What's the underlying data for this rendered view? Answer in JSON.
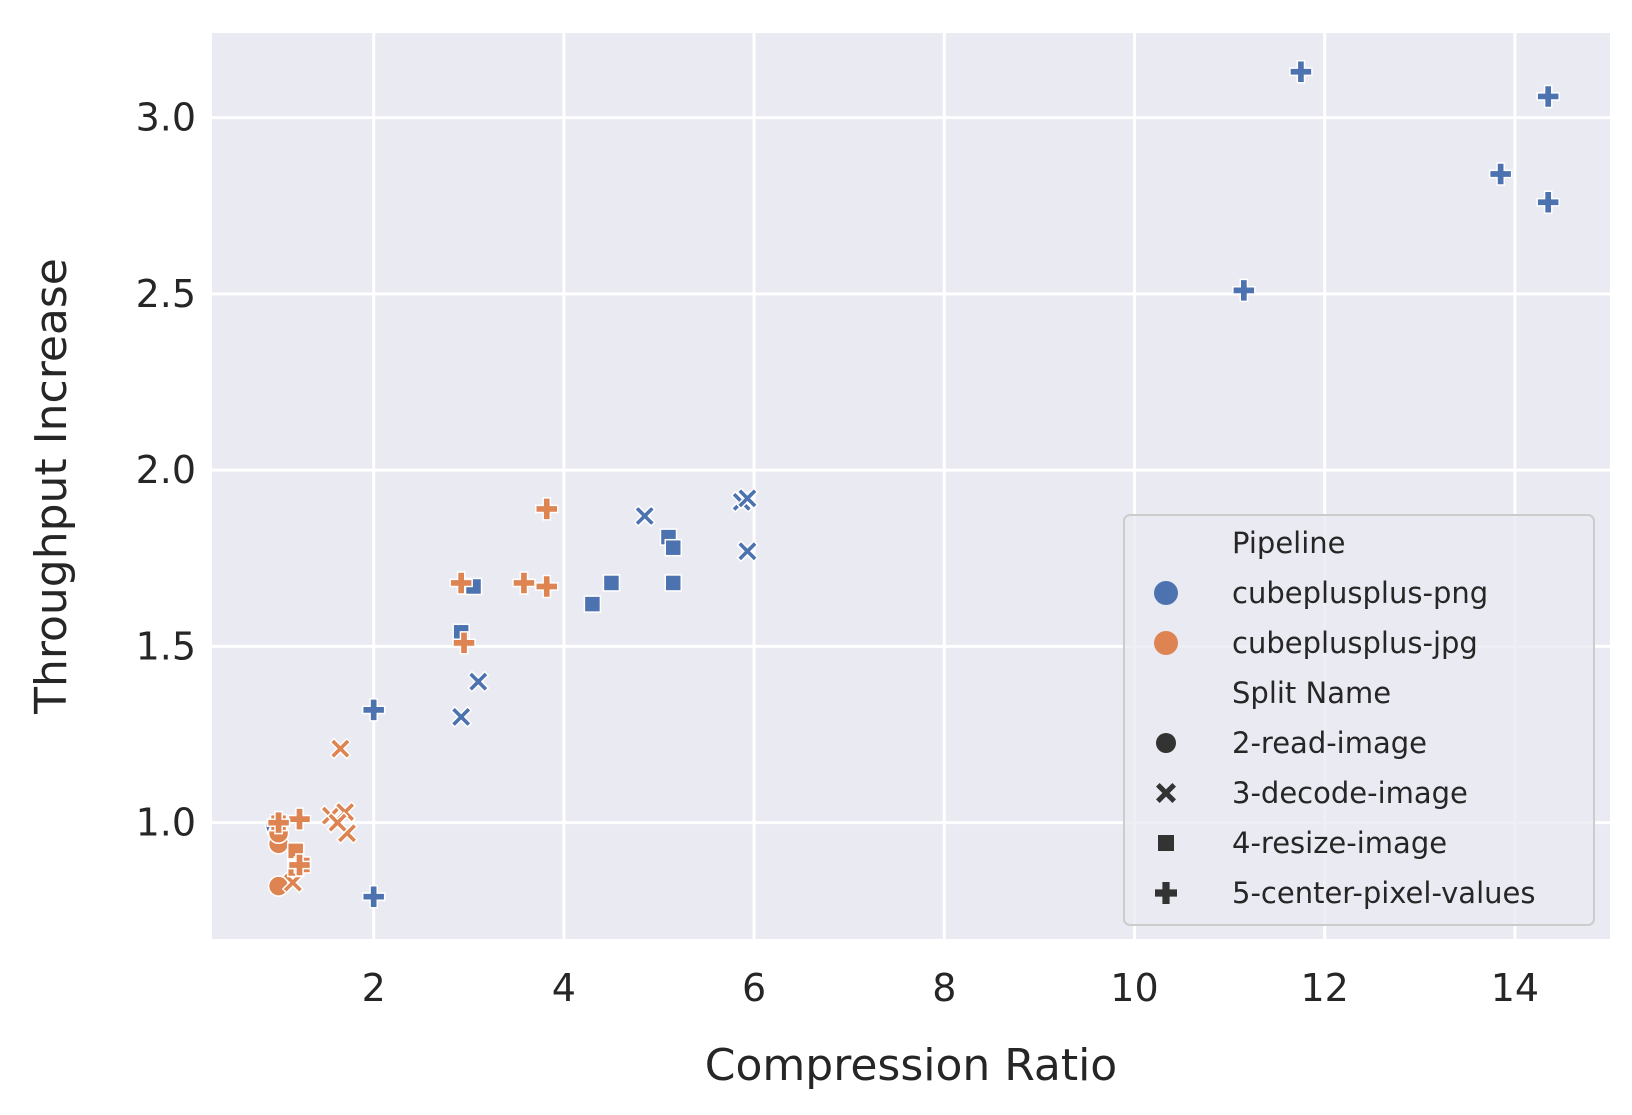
{
  "chart_data": {
    "type": "scatter",
    "title": "",
    "xlabel": "Compression Ratio",
    "ylabel": "Throughput Increase",
    "xlim": [
      0.3,
      15.0
    ],
    "ylim": [
      0.67,
      3.24
    ],
    "xticks": [
      2,
      4,
      6,
      8,
      10,
      12,
      14
    ],
    "yticks": [
      1.0,
      1.5,
      2.0,
      2.5,
      3.0
    ],
    "ytick_labels": [
      "1.0",
      "1.5",
      "2.0",
      "2.5",
      "3.0"
    ],
    "grid": true,
    "background_color": "#eaeaf2",
    "legend": {
      "placement": "lower-right",
      "hue_title": "Pipeline",
      "style_title": "Split Name",
      "hue_entries": [
        {
          "name": "cubeplusplus-png",
          "color": "#4c72b0"
        },
        {
          "name": "cubeplusplus-jpg",
          "color": "#dd8452"
        }
      ],
      "style_entries": [
        {
          "name": "2-read-image",
          "marker": "circle"
        },
        {
          "name": "3-decode-image",
          "marker": "x"
        },
        {
          "name": "4-resize-image",
          "marker": "square"
        },
        {
          "name": "5-center-pixel-values",
          "marker": "plus"
        }
      ]
    },
    "series": [
      {
        "pipeline": "cubeplusplus-png",
        "color": "#4c72b0",
        "points": [
          {
            "x": 0.98,
            "y": 0.98,
            "split": "2-read-image"
          },
          {
            "x": 0.97,
            "y": 0.99,
            "split": "2-read-image"
          },
          {
            "x": 2.92,
            "y": 1.3,
            "split": "3-decode-image"
          },
          {
            "x": 3.1,
            "y": 1.4,
            "split": "3-decode-image"
          },
          {
            "x": 4.85,
            "y": 1.87,
            "split": "3-decode-image"
          },
          {
            "x": 5.87,
            "y": 1.91,
            "split": "3-decode-image"
          },
          {
            "x": 5.93,
            "y": 1.92,
            "split": "3-decode-image"
          },
          {
            "x": 5.93,
            "y": 1.77,
            "split": "3-decode-image"
          },
          {
            "x": 2.92,
            "y": 1.54,
            "split": "4-resize-image"
          },
          {
            "x": 3.05,
            "y": 1.67,
            "split": "4-resize-image"
          },
          {
            "x": 4.3,
            "y": 1.62,
            "split": "4-resize-image"
          },
          {
            "x": 4.5,
            "y": 1.68,
            "split": "4-resize-image"
          },
          {
            "x": 5.1,
            "y": 1.81,
            "split": "4-resize-image"
          },
          {
            "x": 5.15,
            "y": 1.78,
            "split": "4-resize-image"
          },
          {
            "x": 5.15,
            "y": 1.68,
            "split": "4-resize-image"
          },
          {
            "x": 2.0,
            "y": 1.32,
            "split": "5-center-pixel-values"
          },
          {
            "x": 2.0,
            "y": 0.79,
            "split": "5-center-pixel-values"
          },
          {
            "x": 11.15,
            "y": 2.51,
            "split": "5-center-pixel-values"
          },
          {
            "x": 11.75,
            "y": 3.13,
            "split": "5-center-pixel-values"
          },
          {
            "x": 13.85,
            "y": 2.84,
            "split": "5-center-pixel-values"
          },
          {
            "x": 14.35,
            "y": 3.06,
            "split": "5-center-pixel-values"
          },
          {
            "x": 14.35,
            "y": 2.76,
            "split": "5-center-pixel-values"
          }
        ]
      },
      {
        "pipeline": "cubeplusplus-jpg",
        "color": "#dd8452",
        "points": [
          {
            "x": 1.0,
            "y": 0.94,
            "split": "2-read-image"
          },
          {
            "x": 1.0,
            "y": 0.82,
            "split": "2-read-image"
          },
          {
            "x": 1.0,
            "y": 0.97,
            "split": "2-read-image"
          },
          {
            "x": 1.65,
            "y": 1.21,
            "split": "3-decode-image"
          },
          {
            "x": 1.55,
            "y": 1.02,
            "split": "3-decode-image"
          },
          {
            "x": 1.7,
            "y": 1.03,
            "split": "3-decode-image"
          },
          {
            "x": 1.72,
            "y": 0.97,
            "split": "3-decode-image"
          },
          {
            "x": 1.62,
            "y": 1.0,
            "split": "3-decode-image"
          },
          {
            "x": 1.15,
            "y": 0.83,
            "split": "3-decode-image"
          },
          {
            "x": 1.18,
            "y": 0.92,
            "split": "4-resize-image"
          },
          {
            "x": 1.18,
            "y": 0.87,
            "split": "4-resize-image"
          },
          {
            "x": 1.25,
            "y": 0.88,
            "split": "4-resize-image"
          },
          {
            "x": 1.0,
            "y": 1.0,
            "split": "4-resize-image"
          },
          {
            "x": 2.92,
            "y": 1.68,
            "split": "5-center-pixel-values"
          },
          {
            "x": 2.95,
            "y": 1.51,
            "split": "5-center-pixel-values"
          },
          {
            "x": 3.82,
            "y": 1.89,
            "split": "5-center-pixel-values"
          },
          {
            "x": 3.58,
            "y": 1.68,
            "split": "5-center-pixel-values"
          },
          {
            "x": 3.82,
            "y": 1.67,
            "split": "5-center-pixel-values"
          },
          {
            "x": 1.22,
            "y": 1.01,
            "split": "5-center-pixel-values"
          },
          {
            "x": 1.0,
            "y": 1.0,
            "split": "5-center-pixel-values"
          },
          {
            "x": 1.22,
            "y": 0.88,
            "split": "5-center-pixel-values"
          }
        ]
      }
    ]
  }
}
